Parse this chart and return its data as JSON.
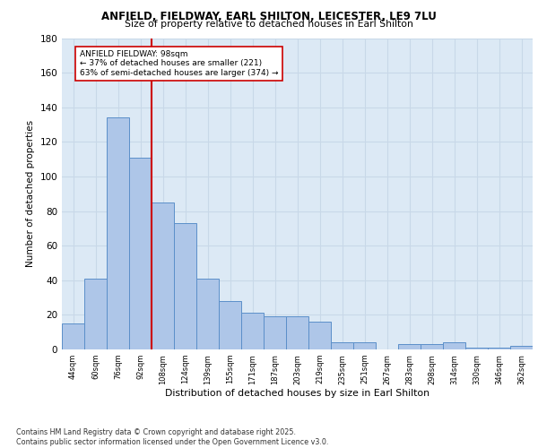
{
  "title1": "ANFIELD, FIELDWAY, EARL SHILTON, LEICESTER, LE9 7LU",
  "title2": "Size of property relative to detached houses in Earl Shilton",
  "xlabel": "Distribution of detached houses by size in Earl Shilton",
  "ylabel": "Number of detached properties",
  "categories": [
    "44sqm",
    "60sqm",
    "76sqm",
    "92sqm",
    "108sqm",
    "124sqm",
    "139sqm",
    "155sqm",
    "171sqm",
    "187sqm",
    "203sqm",
    "219sqm",
    "235sqm",
    "251sqm",
    "267sqm",
    "283sqm",
    "298sqm",
    "314sqm",
    "330sqm",
    "346sqm",
    "362sqm"
  ],
  "values": [
    15,
    41,
    134,
    111,
    85,
    73,
    41,
    28,
    21,
    19,
    19,
    16,
    4,
    4,
    0,
    3,
    3,
    4,
    1,
    1,
    2
  ],
  "bar_color": "#aec6e8",
  "bar_edge_color": "#5b8fc9",
  "grid_color": "#c8d8e8",
  "bg_color": "#dce9f5",
  "vline_color": "#cc0000",
  "annotation_title": "ANFIELD FIELDWAY: 98sqm",
  "annotation_line1": "← 37% of detached houses are smaller (221)",
  "annotation_line2": "63% of semi-detached houses are larger (374) →",
  "annotation_box_color": "#ffffff",
  "annotation_box_edge": "#cc0000",
  "footer": "Contains HM Land Registry data © Crown copyright and database right 2025.\nContains public sector information licensed under the Open Government Licence v3.0.",
  "ylim": [
    0,
    180
  ],
  "yticks": [
    0,
    20,
    40,
    60,
    80,
    100,
    120,
    140,
    160,
    180
  ],
  "vline_pos": 3.5
}
